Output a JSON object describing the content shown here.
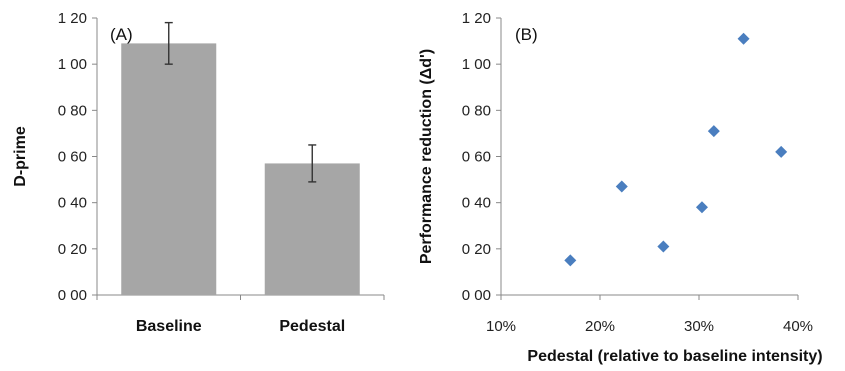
{
  "chart_data": [
    {
      "type": "bar",
      "panel_label": "(A)",
      "categories": [
        "Baseline",
        "Pedestal"
      ],
      "values": [
        1.09,
        0.57
      ],
      "error_bars": [
        0.09,
        0.08
      ],
      "ylabel": "D-prime",
      "xlabel": "",
      "ylim": [
        0,
        1.2
      ],
      "yticks": [
        "0 00",
        "0 20",
        "0 40",
        "0 60",
        "0 80",
        "1 00",
        "1 20"
      ],
      "grid": false,
      "colors": {
        "bar": "#a6a6a6",
        "error": "#333333"
      }
    },
    {
      "type": "scatter",
      "panel_label": "(B)",
      "x": [
        0.17,
        0.222,
        0.264,
        0.303,
        0.315,
        0.345,
        0.383
      ],
      "y": [
        0.15,
        0.47,
        0.21,
        0.38,
        0.71,
        1.11,
        0.62
      ],
      "xlabel": "Pedestal (relative to baseline intensity)",
      "ylabel": "Performance reduction (Δd')",
      "xlim": [
        0.1,
        0.4
      ],
      "ylim": [
        0,
        1.2
      ],
      "xticks": [
        "10%",
        "20%",
        "30%",
        "40%"
      ],
      "yticks": [
        "0 00",
        "0 20",
        "0 40",
        "0 60",
        "0 80",
        "1 00",
        "1 20"
      ],
      "grid": false,
      "colors": {
        "marker": "#4a7ebf"
      }
    }
  ]
}
